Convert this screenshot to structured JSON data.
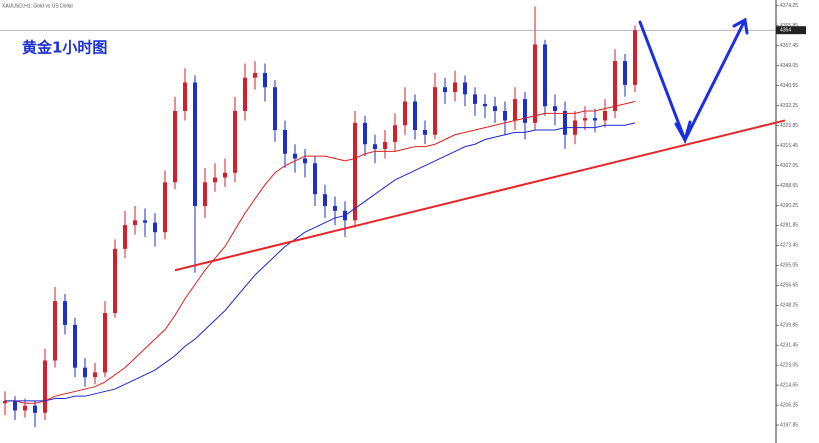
{
  "chart_data": {
    "type": "candlestick",
    "header": "XAUUSD,H1: Gold vs US Dollar",
    "title": "黄金1小时图",
    "up_color": "#d4202a",
    "down_color": "#1e2fc8",
    "ylim": [
      4190.3,
      4376.7
    ],
    "yticks": [
      4197.85,
      4206.25,
      4214.65,
      4223.05,
      4231.45,
      4239.85,
      4248.25,
      4256.65,
      4265.05,
      4273.45,
      4281.85,
      4290.25,
      4298.65,
      4307.05,
      4315.45,
      4323.85,
      4332.25,
      4340.65,
      4349.05,
      4357.45,
      4365.85,
      4374.25
    ],
    "open": [
      4207,
      4208,
      4204,
      4206,
      4203,
      4225,
      4250,
      4240,
      4222,
      4218,
      4220,
      4245,
      4272,
      4282,
      4284,
      4283,
      4279,
      4300,
      4330,
      4342,
      4290,
      4300,
      4302,
      4304,
      4330,
      4344,
      4346,
      4340,
      4322,
      4312,
      4310,
      4308,
      4295,
      4290,
      4288,
      4284,
      4325,
      4316,
      4314,
      4317,
      4324,
      4334,
      4322,
      4320,
      4340,
      4338,
      4342,
      4337,
      4333,
      4332,
      4330,
      4326,
      4335,
      4325,
      4358,
      4332,
      4330,
      4320,
      4326,
      4327,
      4326,
      4330,
      4351,
      4341
    ],
    "high": [
      4212,
      4210,
      4209,
      4208,
      4230,
      4256,
      4253,
      4243,
      4226,
      4224,
      4250,
      4276,
      4288,
      4290,
      4289,
      4287,
      4305,
      4336,
      4348,
      4345,
      4306,
      4308,
      4310,
      4336,
      4350,
      4351,
      4350,
      4343,
      4326,
      4316,
      4314,
      4311,
      4299,
      4294,
      4292,
      4330,
      4328,
      4320,
      4322,
      4329,
      4340,
      4337,
      4326,
      4346,
      4344,
      4347,
      4345,
      4340,
      4337,
      4336,
      4334,
      4340,
      4338,
      4374,
      4360,
      4337,
      4334,
      4330,
      4332,
      4331,
      4335,
      4356,
      4354,
      4366
    ],
    "low": [
      4202,
      4200,
      4201,
      4197,
      4200,
      4222,
      4236,
      4218,
      4214,
      4215,
      4218,
      4243,
      4268,
      4278,
      4277,
      4273,
      4276,
      4297,
      4326,
      4262,
      4285,
      4296,
      4298,
      4300,
      4326,
      4339,
      4334,
      4317,
      4306,
      4304,
      4302,
      4290,
      4285,
      4282,
      4277,
      4281,
      4311,
      4308,
      4310,
      4313,
      4320,
      4318,
      4316,
      4318,
      4333,
      4334,
      4332,
      4328,
      4327,
      4325,
      4320,
      4322,
      4318,
      4322,
      4328,
      4324,
      4314,
      4316,
      4322,
      4321,
      4323,
      4327,
      4336,
      4338
    ],
    "close": [
      4208,
      4204,
      4206,
      4203,
      4225,
      4250,
      4240,
      4222,
      4218,
      4220,
      4245,
      4272,
      4282,
      4284,
      4283,
      4279,
      4300,
      4330,
      4342,
      4290,
      4300,
      4302,
      4304,
      4330,
      4344,
      4346,
      4340,
      4322,
      4312,
      4310,
      4308,
      4295,
      4290,
      4288,
      4284,
      4325,
      4316,
      4314,
      4317,
      4324,
      4334,
      4322,
      4320,
      4340,
      4338,
      4342,
      4337,
      4333,
      4332,
      4330,
      4326,
      4335,
      4325,
      4358,
      4332,
      4330,
      4320,
      4326,
      4327,
      4326,
      4330,
      4351,
      4341,
      4364
    ],
    "series": [
      {
        "color": "#e02020",
        "values": [
          4208,
          4208,
          4207,
          4207,
          4208,
          4210,
          4211,
          4212,
          4213,
          4214,
          4216,
          4219,
          4222,
          4226,
          4230,
          4234,
          4238,
          4244,
          4251,
          4257,
          4263,
          4268,
          4273,
          4280,
          4287,
          4293,
          4299,
          4304,
          4307,
          4309,
          4311,
          4311,
          4311,
          4310,
          4309,
          4310,
          4312,
          4313,
          4313,
          4313,
          4314,
          4315,
          4315,
          4316,
          4318,
          4320,
          4321,
          4322,
          4323,
          4324,
          4325,
          4326,
          4327,
          4328,
          4329,
          4329,
          4329,
          4329,
          4330,
          4330,
          4331,
          4332,
          4333,
          4334
        ]
      },
      {
        "color": "#1a28d0",
        "values": [
          4208,
          4208,
          4208,
          4208,
          4208,
          4209,
          4209,
          4210,
          4210,
          4211,
          4212,
          4213,
          4215,
          4217,
          4219,
          4221,
          4224,
          4227,
          4231,
          4234,
          4238,
          4242,
          4246,
          4251,
          4256,
          4261,
          4265,
          4269,
          4273,
          4276,
          4279,
          4281,
          4283,
          4285,
          4286,
          4289,
          4292,
          4295,
          4298,
          4301,
          4303,
          4305,
          4307,
          4309,
          4311,
          4313,
          4315,
          4316,
          4318,
          4319,
          4320,
          4321,
          4321,
          4322,
          4322,
          4322,
          4323,
          4323,
          4323,
          4323,
          4324,
          4324,
          4324,
          4325
        ]
      }
    ],
    "trendline": {
      "x": [
        17,
        77
      ],
      "values": [
        4263,
        4325
      ],
      "color": "#e8262a"
    }
  }
}
